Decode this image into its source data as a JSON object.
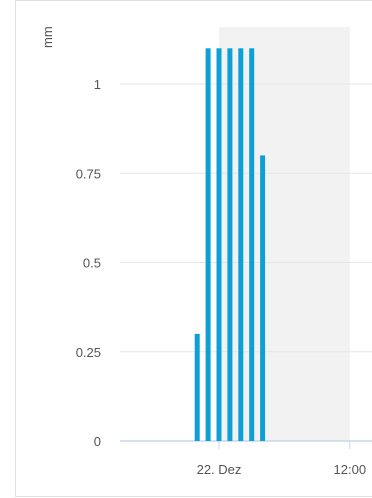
{
  "chart_data": {
    "type": "bar",
    "ylabel": "mm",
    "ylim": [
      0,
      1.125
    ],
    "yticks": [
      {
        "value": 0,
        "label": "0"
      },
      {
        "value": 0.25,
        "label": "0.25"
      },
      {
        "value": 0.5,
        "label": "0.5"
      },
      {
        "value": 0.75,
        "label": "0.75"
      },
      {
        "value": 1,
        "label": "1"
      }
    ],
    "xticks": [
      {
        "hour": 0,
        "label": "22. Dez"
      },
      {
        "hour": 12,
        "label": "12:00"
      }
    ],
    "xlim_hours": [
      -9,
      15
    ],
    "shaded_region_hours": [
      0,
      12
    ],
    "series": [
      {
        "color": "#0e9fd6",
        "points": [
          {
            "hour": -2,
            "value": 0.3
          },
          {
            "hour": -1,
            "value": 1.1
          },
          {
            "hour": 0,
            "value": 1.1
          },
          {
            "hour": 1,
            "value": 1.1
          },
          {
            "hour": 2,
            "value": 1.1
          },
          {
            "hour": 3,
            "value": 1.1
          },
          {
            "hour": 4,
            "value": 0.8
          }
        ]
      }
    ],
    "grid": true,
    "colors": {
      "bar": "#0e9fd6",
      "shade": "#f2f2f2",
      "grid": "#e6e6e6",
      "axis_text": "#555555"
    }
  }
}
